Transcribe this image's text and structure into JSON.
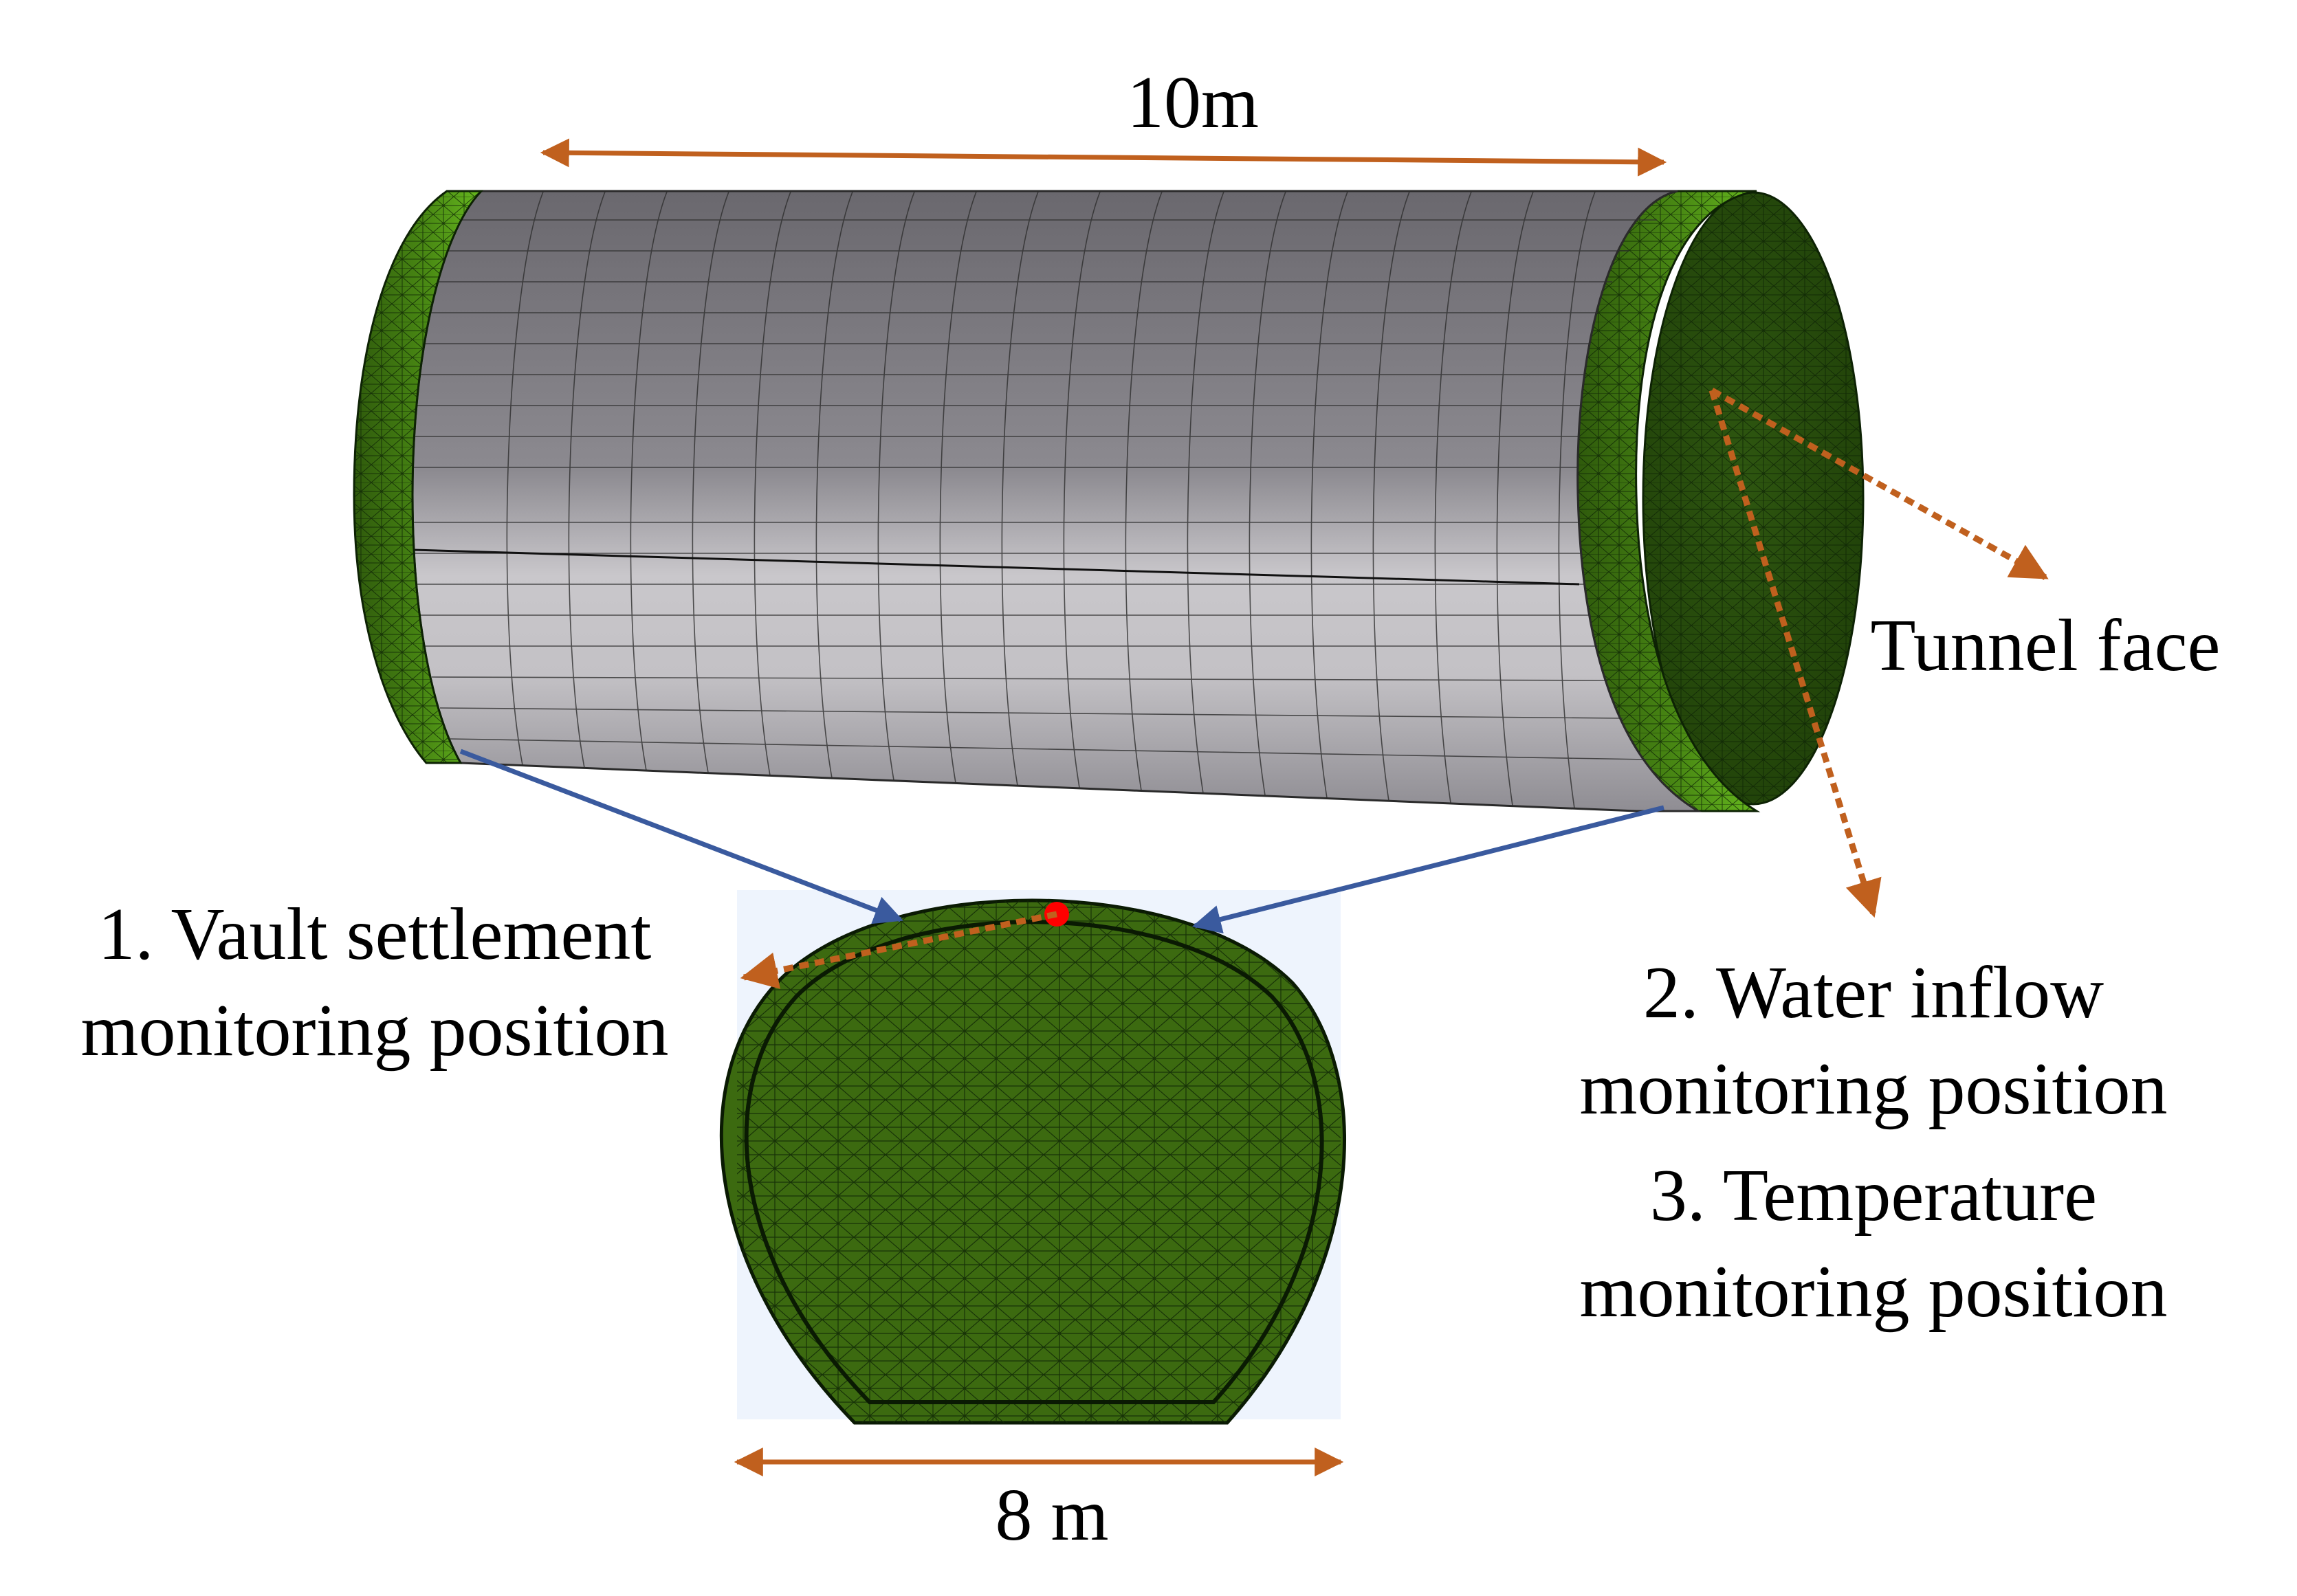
{
  "labels": {
    "length": "10m",
    "width": "8 m",
    "tunnel_face": "Tunnel face",
    "vault_line1": "1. Vault settlement",
    "vault_line2": "monitoring position",
    "water_line1": "2. Water inflow",
    "water_line2": "monitoring position",
    "temp_line1": "3. Temperature",
    "temp_line2": "monitoring position"
  },
  "colors": {
    "dimension_arrow": "#c0601e",
    "leader_arrow": "#c0601e",
    "section_arrow": "#3a5a9e",
    "mesh_green": "#3c6a10",
    "mesh_green_light": "#5aa81a",
    "lining_gray": "#8f8d93",
    "monitor_point": "#ff0000",
    "section_background": "#eef4fd"
  }
}
